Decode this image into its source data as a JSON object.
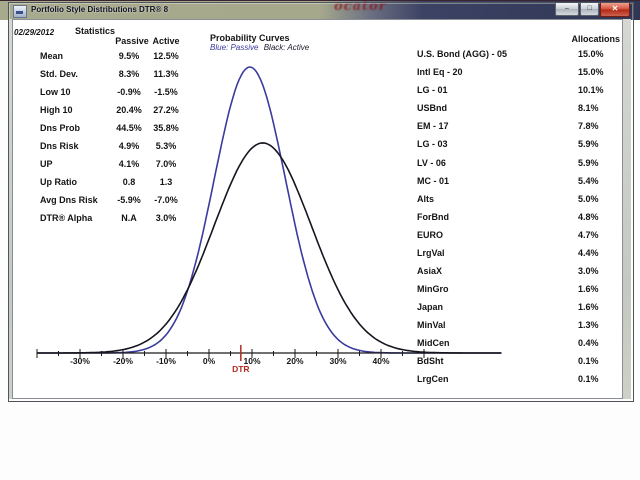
{
  "window": {
    "title": "Portfolio Style Distributions DTR® 8",
    "controls": {
      "minimize": "–",
      "maximize": "□",
      "close": "✕"
    }
  },
  "background": {
    "blurred_text": "ocator"
  },
  "report": {
    "date": "02/29/2012"
  },
  "statistics": {
    "heading": "Statistics",
    "columns": [
      "Passive",
      "Active"
    ],
    "rows": [
      {
        "label": "Mean",
        "passive": "9.5%",
        "active": "12.5%"
      },
      {
        "label": "Std. Dev.",
        "passive": "8.3%",
        "active": "11.3%"
      },
      {
        "label": "Low 10",
        "passive": "-0.9%",
        "active": "-1.5%"
      },
      {
        "label": "High 10",
        "passive": "20.4%",
        "active": "27.2%"
      },
      {
        "label": "Dns Prob",
        "passive": "44.5%",
        "active": "35.8%"
      },
      {
        "label": "Dns Risk",
        "passive": "4.9%",
        "active": "5.3%"
      },
      {
        "label": "UP",
        "passive": "4.1%",
        "active": "7.0%"
      },
      {
        "label": "Up Ratio",
        "passive": "0.8",
        "active": "1.3"
      },
      {
        "label": "Avg Dns Risk",
        "passive": "-5.9%",
        "active": "-7.0%"
      },
      {
        "label": "DTR® Alpha",
        "passive": "N.A",
        "active": "3.0%"
      }
    ]
  },
  "chart_data": {
    "type": "line",
    "title": "Probability Curves",
    "legend": [
      {
        "label": "Blue: Passive",
        "color": "#3b3b9d"
      },
      {
        "label": "Black: Active",
        "color": "#15151f"
      }
    ],
    "x_axis": {
      "unit": "%",
      "tick_labels": [
        "-30%",
        "-20%",
        "-10%",
        "0%",
        "10%",
        "20%",
        "30%",
        "40%"
      ],
      "tick_values": [
        -30,
        -20,
        -10,
        0,
        10,
        20,
        30,
        40
      ],
      "minor_tick_step": 5,
      "range": [
        -40,
        68
      ],
      "grid": false
    },
    "dtr_marker": {
      "label": "DTR",
      "value_percent": 7.4,
      "color": "#b22a20"
    },
    "series": [
      {
        "name": "Passive",
        "color": "#3b3b9d",
        "distribution": "normal",
        "mean_percent": 9.5,
        "std_percent": 8.3
      },
      {
        "name": "Active",
        "color": "#15151f",
        "distribution": "normal",
        "mean_percent": 12.5,
        "std_percent": 11.3
      }
    ]
  },
  "allocations": {
    "heading": "Allocations",
    "rows": [
      {
        "name": "U.S. Bond (AGG) - 05",
        "value": "15.0%"
      },
      {
        "name": "Intl Eq - 20",
        "value": "15.0%"
      },
      {
        "name": "LG - 01",
        "value": "10.1%"
      },
      {
        "name": "USBnd",
        "value": "8.1%"
      },
      {
        "name": "EM - 17",
        "value": "7.8%"
      },
      {
        "name": "LG - 03",
        "value": "5.9%"
      },
      {
        "name": "LV - 06",
        "value": "5.9%"
      },
      {
        "name": "MC - 01",
        "value": "5.4%"
      },
      {
        "name": "Alts",
        "value": "5.0%"
      },
      {
        "name": "ForBnd",
        "value": "4.8%"
      },
      {
        "name": "EURO",
        "value": "4.7%"
      },
      {
        "name": "LrgVal",
        "value": "4.4%"
      },
      {
        "name": "AsiaX",
        "value": "3.0%"
      },
      {
        "name": "MinGro",
        "value": "1.6%"
      },
      {
        "name": "Japan",
        "value": "1.6%"
      },
      {
        "name": "MinVal",
        "value": "1.3%"
      },
      {
        "name": "MidCen",
        "value": "0.4%"
      },
      {
        "name": "BdSht",
        "value": "0.1%"
      },
      {
        "name": "LrgCen",
        "value": "0.1%"
      }
    ]
  }
}
